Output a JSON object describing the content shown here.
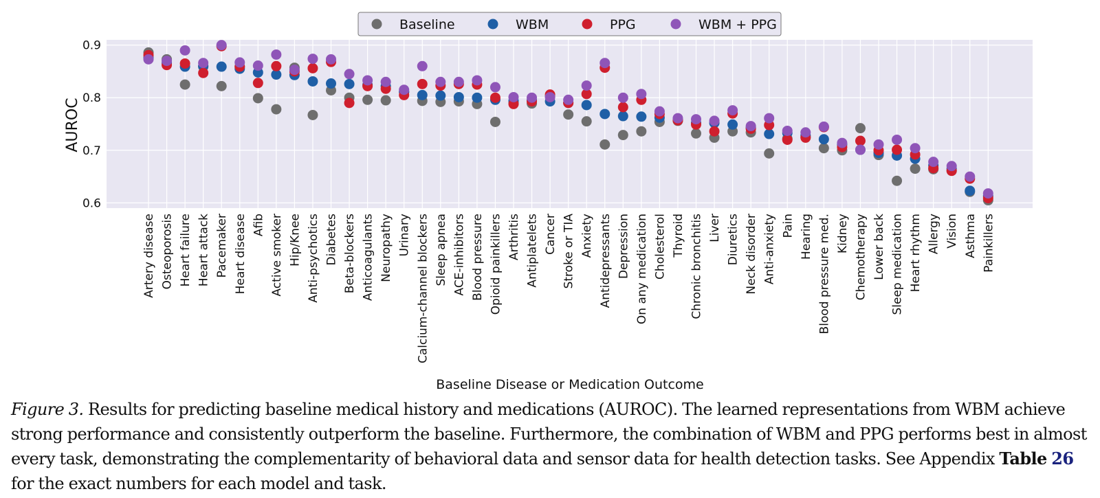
{
  "chart_data": {
    "type": "scatter",
    "xlabel": "Baseline Disease or Medication Outcome",
    "ylabel": "AUROC",
    "ylim": [
      0.59,
      0.91
    ],
    "yticks": [
      0.6,
      0.7,
      0.8,
      0.9
    ],
    "ytick_labels": [
      "0.6",
      "0.7",
      "0.8",
      "0.9"
    ],
    "grid": true,
    "legend_position": "top-center",
    "categories": [
      "Artery disease",
      "Osteoporosis",
      "Heart failure",
      "Heart attack",
      "Pacemaker",
      "Heart disease",
      "Afib",
      "Active smoker",
      "Hip/Knee",
      "Anti-psychotics",
      "Diabetes",
      "Beta-blockers",
      "Anticoagulants",
      "Neuropathy",
      "Urinary",
      "Calcium-channel blockers",
      "Sleep apnea",
      "ACE-inhibitors",
      "Blood pressure",
      "Opioid painkillers",
      "Arthritis",
      "Antiplatelets",
      "Cancer",
      "Stroke or TIA",
      "Anxiety",
      "Antidepressants",
      "Depression",
      "On any medication",
      "Cholesterol",
      "Thyroid",
      "Chronic bronchitis",
      "Liver",
      "Diuretics",
      "Neck disorder",
      "Anti-anxiety",
      "Pain",
      "Hearing",
      "Blood pressure med.",
      "Kidney",
      "Chemotherapy",
      "Lower back",
      "Sleep medication",
      "Heart rhythm",
      "Allergy",
      "Vision",
      "Asthma",
      "Painkillers"
    ],
    "series": [
      {
        "name": "Baseline",
        "color": "#6e6e6e",
        "values": [
          0.886,
          0.873,
          0.825,
          0.859,
          0.822,
          0.859,
          0.799,
          0.778,
          0.857,
          0.767,
          0.814,
          0.8,
          0.796,
          0.795,
          0.811,
          0.794,
          0.792,
          0.793,
          0.788,
          0.754,
          0.79,
          0.789,
          0.803,
          0.768,
          0.755,
          0.711,
          0.729,
          0.736,
          0.754,
          0.756,
          0.732,
          0.724,
          0.736,
          0.734,
          0.694,
          0.722,
          0.725,
          0.704,
          0.7,
          0.742,
          0.691,
          0.642,
          0.665,
          0.664,
          0.661,
          0.621,
          0.605
        ]
      },
      {
        "name": "WBM",
        "color": "#1f5fa6",
        "values": [
          0.876,
          0.866,
          0.859,
          0.86,
          0.859,
          0.855,
          0.848,
          0.844,
          0.843,
          0.831,
          0.827,
          0.826,
          0.824,
          0.822,
          0.811,
          0.805,
          0.804,
          0.801,
          0.8,
          0.796,
          0.794,
          0.795,
          0.793,
          0.79,
          0.786,
          0.769,
          0.765,
          0.764,
          0.762,
          0.758,
          0.752,
          0.752,
          0.749,
          0.743,
          0.731,
          0.733,
          0.728,
          0.721,
          0.711,
          0.701,
          0.695,
          0.69,
          0.684,
          0.671,
          0.665,
          0.623,
          0.613
        ]
      },
      {
        "name": "PPG",
        "color": "#cf1f2e",
        "values": [
          0.881,
          0.862,
          0.865,
          0.847,
          0.898,
          0.859,
          0.828,
          0.86,
          0.85,
          0.856,
          0.868,
          0.79,
          0.822,
          0.817,
          0.805,
          0.826,
          0.823,
          0.826,
          0.825,
          0.8,
          0.788,
          0.793,
          0.806,
          0.79,
          0.807,
          0.857,
          0.782,
          0.796,
          0.769,
          0.757,
          0.749,
          0.736,
          0.77,
          0.741,
          0.748,
          0.72,
          0.724,
          0.744,
          0.706,
          0.718,
          0.7,
          0.701,
          0.692,
          0.666,
          0.661,
          0.646,
          0.609
        ]
      },
      {
        "name": "WBM + PPG",
        "color": "#8f55b8",
        "values": [
          0.873,
          0.87,
          0.89,
          0.866,
          0.9,
          0.867,
          0.861,
          0.882,
          0.853,
          0.874,
          0.873,
          0.845,
          0.833,
          0.83,
          0.815,
          0.86,
          0.83,
          0.83,
          0.833,
          0.82,
          0.801,
          0.8,
          0.801,
          0.796,
          0.823,
          0.866,
          0.8,
          0.807,
          0.774,
          0.761,
          0.759,
          0.756,
          0.776,
          0.746,
          0.761,
          0.737,
          0.734,
          0.745,
          0.714,
          0.701,
          0.711,
          0.72,
          0.704,
          0.678,
          0.67,
          0.65,
          0.618
        ]
      }
    ]
  },
  "caption": {
    "label": "Figure 3.",
    "text_before": "Results for predicting baseline medical history and medications (AUROC). The learned representations from WBM achieve strong performance and consistently outperform the baseline. Furthermore, the combination of WBM and PPG performs best in almost every task, demonstrating the complementarity of behavioral data and sensor data for health detection tasks. See Appendix",
    "table_word": "Table",
    "table_number": "26",
    "text_after": "for the exact numbers for each model and task."
  }
}
